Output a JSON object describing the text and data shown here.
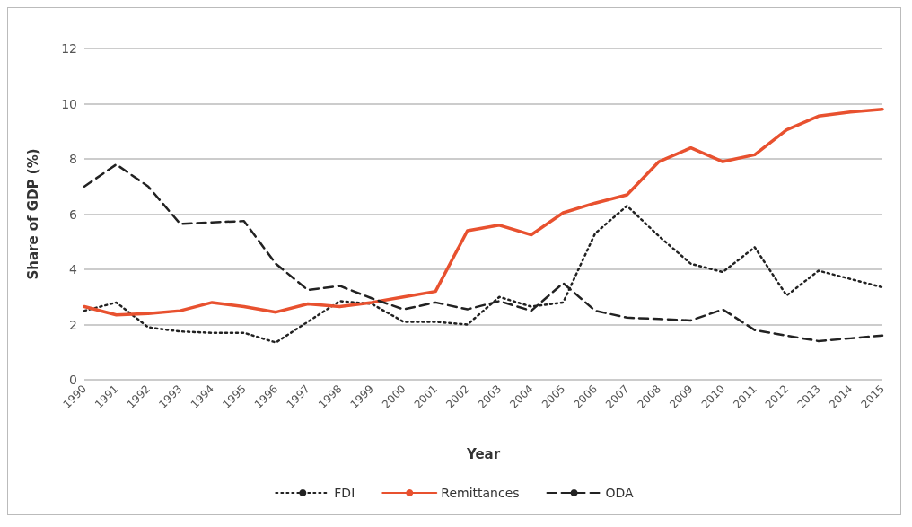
{
  "chart_data": {
    "type": "line",
    "xlabel": "Year",
    "ylabel": "Share of GDP (%)",
    "categories": [
      "1990",
      "1991",
      "1992",
      "1993",
      "1994",
      "1995",
      "1996",
      "1997",
      "1998",
      "1999",
      "2000",
      "2001",
      "2002",
      "2003",
      "2004",
      "2005",
      "2006",
      "2007",
      "2008",
      "2009",
      "2010",
      "2011",
      "2012",
      "2013",
      "2014",
      "2015"
    ],
    "series": [
      {
        "name": "FDI",
        "color": "#222222",
        "line_style": "dotted",
        "values": [
          2.5,
          2.8,
          1.9,
          1.75,
          1.7,
          1.7,
          1.35,
          2.1,
          2.85,
          2.75,
          2.1,
          2.1,
          2.0,
          3.0,
          2.65,
          2.8,
          5.3,
          6.3,
          5.2,
          4.2,
          3.9,
          4.8,
          3.05,
          3.95,
          3.65,
          3.35
        ]
      },
      {
        "name": "Remittances",
        "color": "#e8512f",
        "line_style": "solid",
        "values": [
          2.65,
          2.35,
          2.4,
          2.5,
          2.8,
          2.65,
          2.45,
          2.75,
          2.65,
          2.8,
          3.0,
          3.2,
          5.4,
          5.6,
          5.25,
          6.05,
          6.4,
          6.7,
          7.9,
          8.4,
          7.9,
          8.15,
          9.05,
          9.55,
          9.7,
          9.8
        ]
      },
      {
        "name": "ODA",
        "color": "#222222",
        "line_style": "dashed",
        "values": [
          7.0,
          7.8,
          7.0,
          5.65,
          5.7,
          5.75,
          4.2,
          3.25,
          3.4,
          2.95,
          2.55,
          2.8,
          2.55,
          2.85,
          2.5,
          3.5,
          2.5,
          2.25,
          2.2,
          2.15,
          2.55,
          1.8,
          1.6,
          1.4,
          1.5,
          1.6
        ]
      }
    ],
    "ylim": [
      0,
      12
    ],
    "yticks": [
      0,
      2,
      4,
      6,
      8,
      10,
      12
    ],
    "grid": "y",
    "legend": "bottom",
    "marker": "none"
  }
}
